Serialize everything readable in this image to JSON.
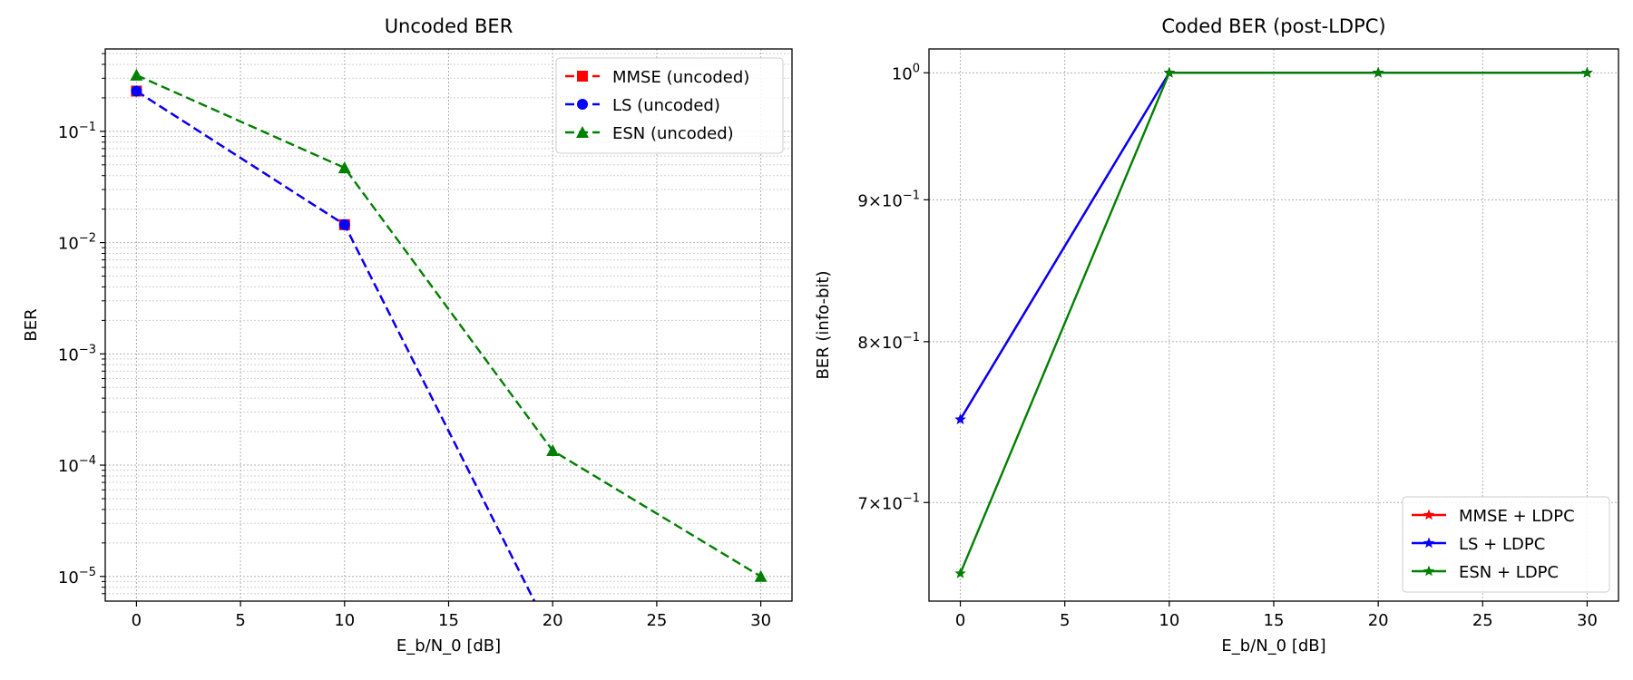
{
  "chart_data": [
    {
      "type": "line",
      "title": "Uncoded BER",
      "xlabel": "E_b/N_0 [dB]",
      "ylabel": "BER",
      "xscale": "linear",
      "yscale": "log",
      "xlim": [
        -1.5,
        31.5
      ],
      "ylim": [
        6e-06,
        0.55
      ],
      "xticks": [
        0,
        5,
        10,
        15,
        20,
        25,
        30
      ],
      "yticks": [
        {
          "value": 1e-05,
          "base": "10",
          "exp": "−5"
        },
        {
          "value": 0.0001,
          "base": "10",
          "exp": "−4"
        },
        {
          "value": 0.001,
          "base": "10",
          "exp": "−3"
        },
        {
          "value": 0.01,
          "base": "10",
          "exp": "−2"
        },
        {
          "value": 0.1,
          "base": "10",
          "exp": "−1"
        }
      ],
      "grid": true,
      "minor_grid": true,
      "legend_position": "upper right",
      "x": [
        0,
        10,
        20,
        30
      ],
      "series": [
        {
          "name": "MMSE (uncoded)",
          "color": "#ff0000",
          "linestyle": "dashed",
          "marker": "square",
          "values": [
            0.23,
            0.0145,
            0,
            0
          ]
        },
        {
          "name": "LS (uncoded)",
          "color": "#0000ff",
          "linestyle": "dashed",
          "marker": "circle",
          "values": [
            0.23,
            0.0145,
            0,
            0
          ]
        },
        {
          "name": "ESN (uncoded)",
          "color": "#008000",
          "linestyle": "dashed",
          "marker": "triangle",
          "values": [
            0.32,
            0.047,
            0.000135,
            1e-05
          ]
        }
      ]
    },
    {
      "type": "line",
      "title": "Coded BER (post-LDPC)",
      "xlabel": "E_b/N_0 [dB]",
      "ylabel": "BER (info-bit)",
      "xscale": "linear",
      "yscale": "log",
      "xlim": [
        -1.5,
        31.5
      ],
      "ylim": [
        0.645,
        1.02
      ],
      "xticks": [
        0,
        5,
        10,
        15,
        20,
        25,
        30
      ],
      "yticks": [
        {
          "value": 0.7,
          "base": "7×10",
          "exp": "−1"
        },
        {
          "value": 0.8,
          "base": "8×10",
          "exp": "−1"
        },
        {
          "value": 0.9,
          "base": "9×10",
          "exp": "−1"
        },
        {
          "value": 1.0,
          "base": "10",
          "exp": "0"
        }
      ],
      "grid": true,
      "minor_grid": false,
      "legend_position": "lower right",
      "x": [
        0,
        10,
        20,
        30
      ],
      "series": [
        {
          "name": "MMSE + LDPC",
          "color": "#ff0000",
          "linestyle": "solid",
          "marker": "star",
          "values": [
            0.75,
            1.0,
            1.0,
            1.0
          ]
        },
        {
          "name": "LS + LDPC",
          "color": "#0000ff",
          "linestyle": "solid",
          "marker": "star",
          "values": [
            0.75,
            1.0,
            1.0,
            1.0
          ]
        },
        {
          "name": "ESN + LDPC",
          "color": "#008000",
          "linestyle": "solid",
          "marker": "star",
          "values": [
            0.66,
            1.0,
            1.0,
            1.0
          ]
        }
      ]
    }
  ]
}
